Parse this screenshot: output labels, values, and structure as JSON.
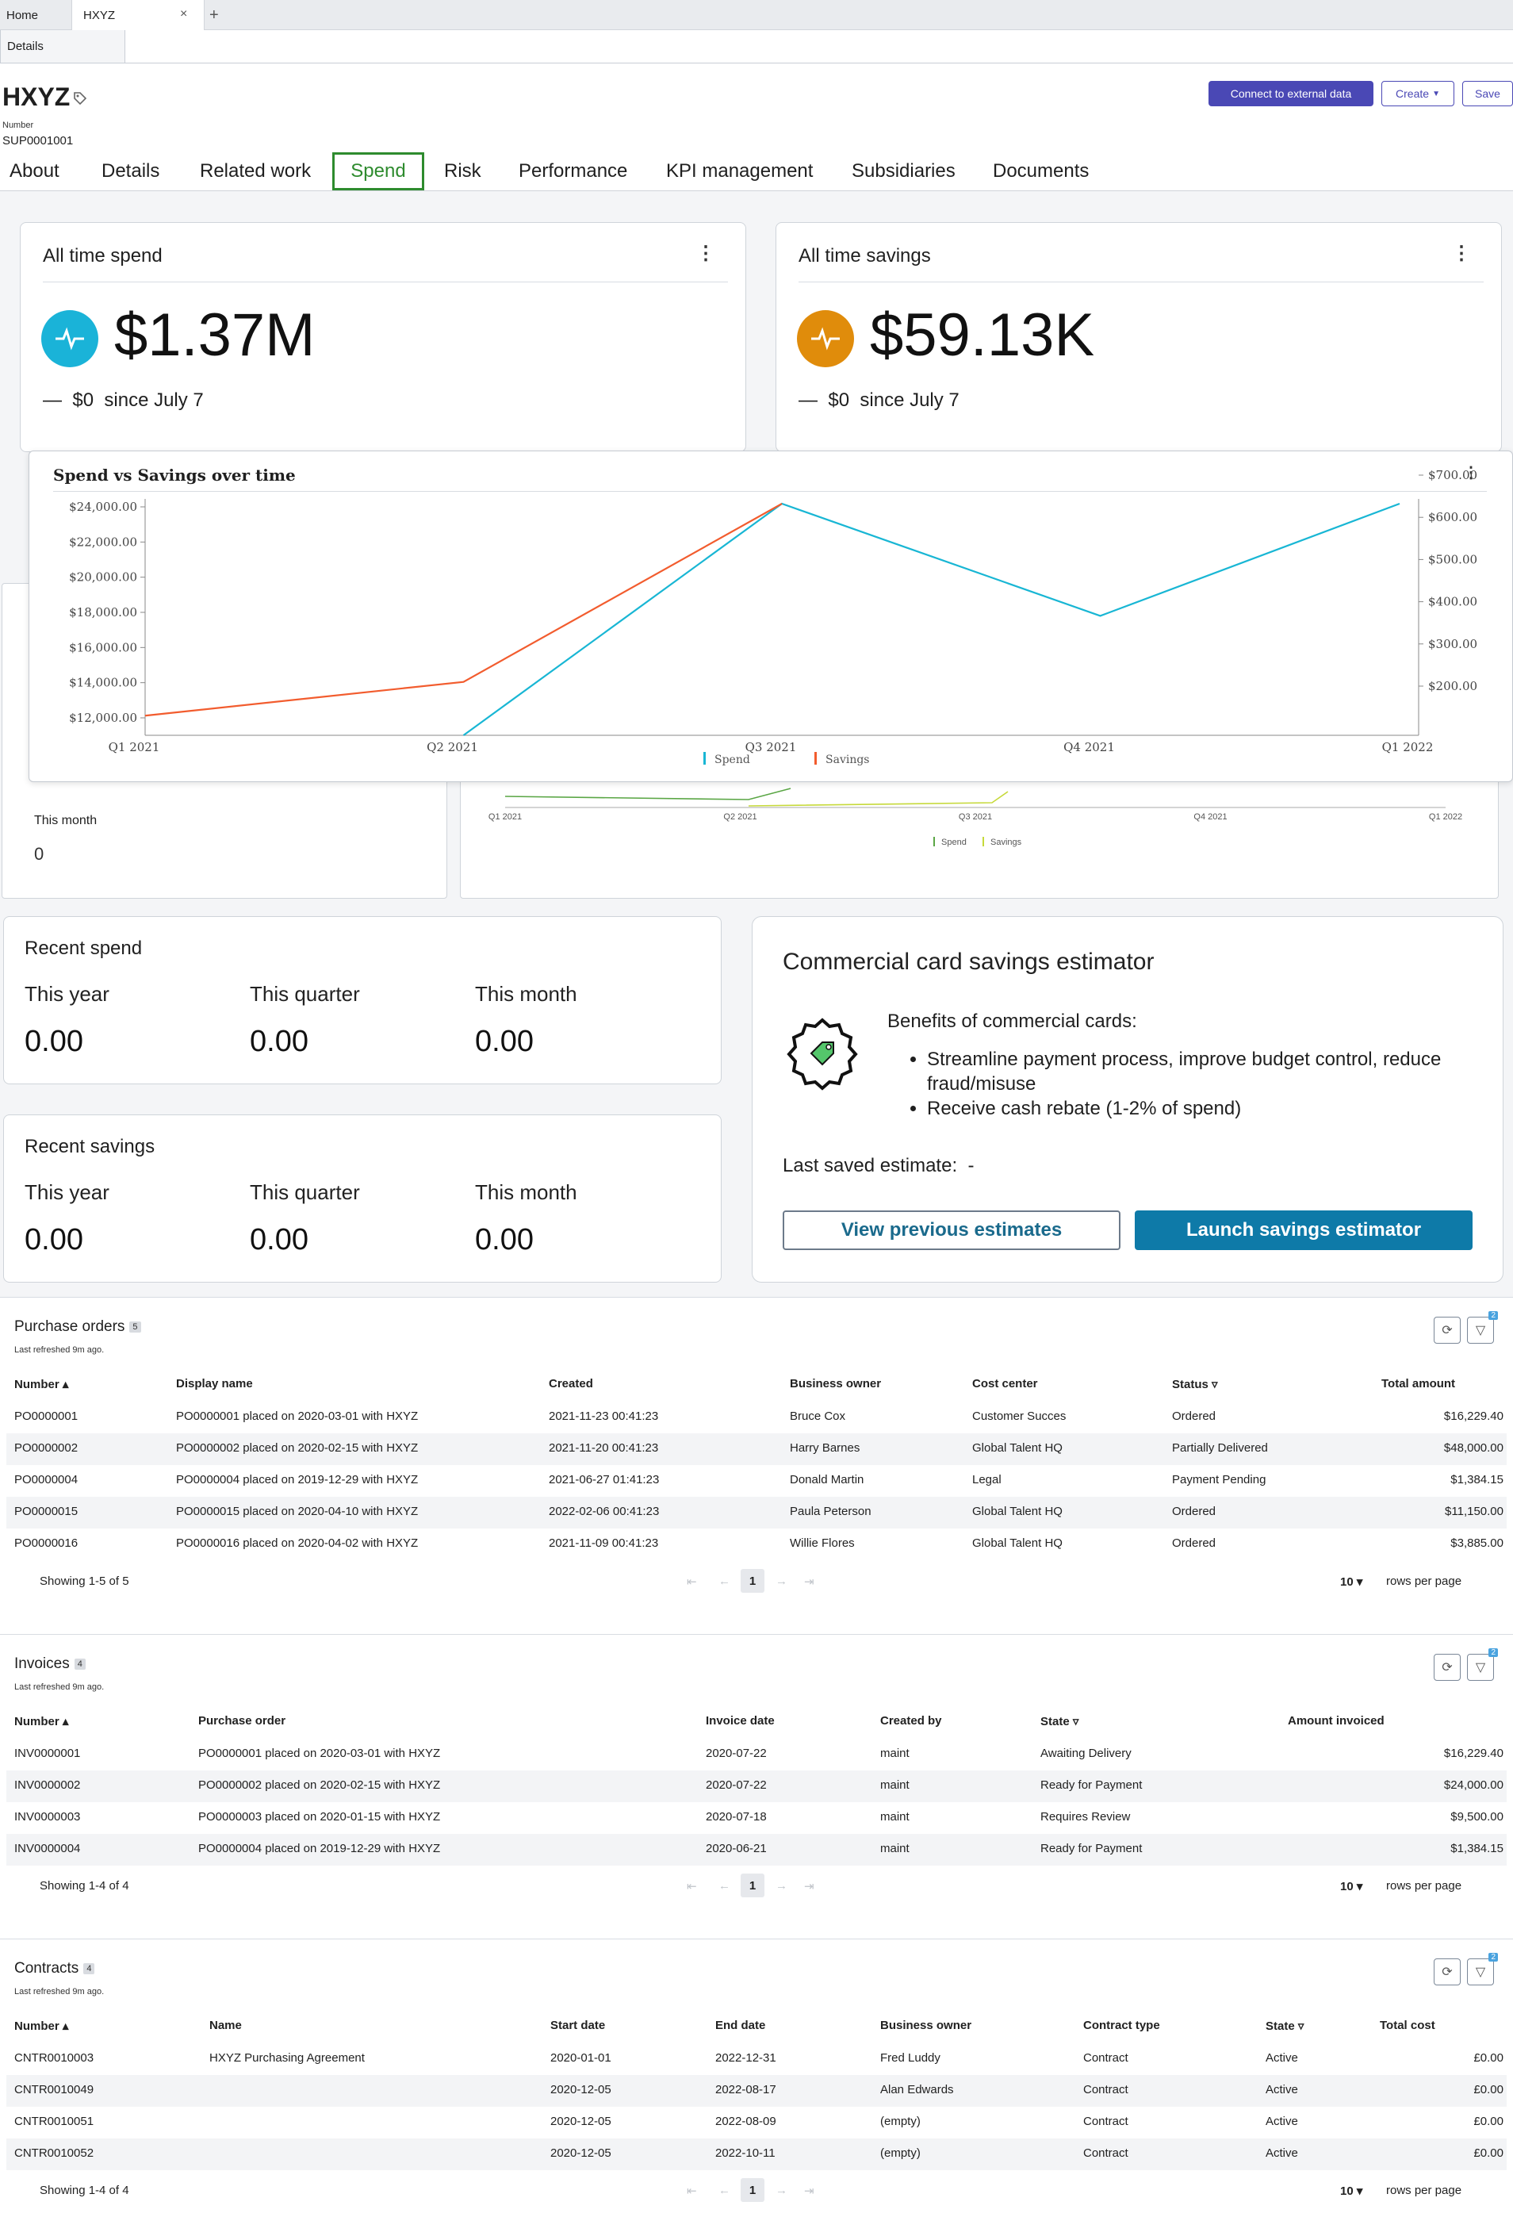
{
  "browser_tabs": {
    "home": "Home",
    "current": "HXYZ",
    "close": "×",
    "new": "+"
  },
  "subtab": "Details",
  "record": {
    "title": "HXYZ",
    "number_label": "Number",
    "number_value": "SUP0001001"
  },
  "header_buttons": {
    "connect": "Connect to external data",
    "create": "Create",
    "save": "Save"
  },
  "nav": [
    "About",
    "Details",
    "Related work",
    "Spend",
    "Risk",
    "Performance",
    "KPI management",
    "Subsidiaries",
    "Documents"
  ],
  "stats": {
    "spend": {
      "title": "All time spend",
      "value": "$1.37M",
      "delta_sym": "—",
      "delta": "$0",
      "since": "since July 7",
      "color": "#1ab3d8"
    },
    "savings": {
      "title": "All time savings",
      "value": "$59.13K",
      "delta_sym": "—",
      "delta": "$0",
      "since": "since July 7",
      "color": "#e08c0b"
    }
  },
  "chart_data": [
    {
      "type": "line",
      "title": "Spend vs Savings over time",
      "categories": [
        "Q1 2021",
        "Q2 2021",
        "Q3 2021",
        "Q4 2021",
        "Q1 2022"
      ],
      "y_left_ticks": [
        "$12,000.00",
        "$14,000.00",
        "$16,000.00",
        "$18,000.00",
        "$20,000.00",
        "$22,000.00",
        "$24,000.00"
      ],
      "y_right_ticks": [
        "$200.00",
        "$300.00",
        "$400.00",
        "$500.00",
        "$600.00",
        "$700.00"
      ],
      "ylim_left": [
        12000,
        24000
      ],
      "ylim_right": [
        200,
        700
      ],
      "series": [
        {
          "name": "Spend",
          "axis": "left",
          "color": "#18b6d4",
          "values": [
            null,
            11000,
            25000,
            17800,
            24900
          ]
        },
        {
          "name": "Savings",
          "axis": "right",
          "color": "#f25c2e",
          "values": [
            130,
            210,
            750,
            null,
            null
          ]
        }
      ],
      "legend": "bottom"
    },
    {
      "type": "line",
      "categories": [
        "Q1 2021",
        "Q2 2021",
        "Q3 2021",
        "Q4 2021",
        "Q1 2022"
      ],
      "series": [
        {
          "name": "Spend",
          "color": "#5aa645"
        },
        {
          "name": "Savings",
          "color": "#c6d93a"
        }
      ],
      "legend": "bottom"
    }
  ],
  "this_month_card": {
    "label": "This month",
    "value": "0"
  },
  "recent_spend": {
    "title": "Recent spend",
    "labels": [
      "This year",
      "This quarter",
      "This month"
    ],
    "values": [
      "0.00",
      "0.00",
      "0.00"
    ]
  },
  "recent_savings": {
    "title": "Recent savings",
    "labels": [
      "This year",
      "This quarter",
      "This month"
    ],
    "values": [
      "0.00",
      "0.00",
      "0.00"
    ]
  },
  "estimator": {
    "title": "Commercial card savings estimator",
    "benefits_heading": "Benefits of commercial cards:",
    "bullets": [
      "Streamline payment process, improve budget control, reduce fraud/misuse",
      "Receive cash rebate (1-2% of spend)"
    ],
    "last_saved_label": "Last saved estimate:",
    "last_saved_value": "-",
    "view_btn": "View previous estimates",
    "launch_btn": "Launch savings estimator"
  },
  "purchase_orders": {
    "title": "Purchase orders",
    "count": "5",
    "refreshed": "Last refreshed 9m ago.",
    "filter_count": "2",
    "headers": [
      "Number ▴",
      "Display name",
      "Created",
      "Business owner",
      "Cost center",
      "Status ▿",
      "Total amount"
    ],
    "rows": [
      [
        "PO0000001",
        "PO0000001 placed on 2020-03-01 with HXYZ",
        "2021-11-23 00:41:23",
        "Bruce Cox",
        "Customer Succes",
        "Ordered",
        "$16,229.40"
      ],
      [
        "PO0000002",
        "PO0000002 placed on 2020-02-15 with HXYZ",
        "2021-11-20 00:41:23",
        "Harry Barnes",
        "Global Talent HQ",
        "Partially Delivered",
        "$48,000.00"
      ],
      [
        "PO0000004",
        "PO0000004 placed on 2019-12-29 with HXYZ",
        "2021-06-27 01:41:23",
        "Donald Martin",
        "Legal",
        "Payment Pending",
        "$1,384.15"
      ],
      [
        "PO0000015",
        "PO0000015 placed on 2020-04-10 with HXYZ",
        "2022-02-06 00:41:23",
        "Paula Peterson",
        "Global Talent HQ",
        "Ordered",
        "$11,150.00"
      ],
      [
        "PO0000016",
        "PO0000016 placed on 2020-04-02 with HXYZ",
        "2021-11-09 00:41:23",
        "Willie Flores",
        "Global Talent HQ",
        "Ordered",
        "$3,885.00"
      ]
    ],
    "showing": "Showing 1-5 of 5",
    "page": "1",
    "rows_per_page": "10",
    "rpp_label": "rows per page"
  },
  "invoices": {
    "title": "Invoices",
    "count": "4",
    "refreshed": "Last refreshed 9m ago.",
    "filter_count": "2",
    "headers": [
      "Number ▴",
      "Purchase order",
      "Invoice date",
      "Created by",
      "State ▿",
      "Amount invoiced"
    ],
    "rows": [
      [
        "INV0000001",
        "PO0000001 placed on 2020-03-01 with HXYZ",
        "2020-07-22",
        "maint",
        "Awaiting Delivery",
        "$16,229.40"
      ],
      [
        "INV0000002",
        "PO0000002 placed on 2020-02-15 with HXYZ",
        "2020-07-22",
        "maint",
        "Ready for Payment",
        "$24,000.00"
      ],
      [
        "INV0000003",
        "PO0000003 placed on 2020-01-15 with HXYZ",
        "2020-07-18",
        "maint",
        "Requires Review",
        "$9,500.00"
      ],
      [
        "INV0000004",
        "PO0000004 placed on 2019-12-29 with HXYZ",
        "2020-06-21",
        "maint",
        "Ready for Payment",
        "$1,384.15"
      ]
    ],
    "showing": "Showing 1-4 of 4",
    "page": "1",
    "rows_per_page": "10",
    "rpp_label": "rows per page"
  },
  "contracts": {
    "title": "Contracts",
    "count": "4",
    "refreshed": "Last refreshed 9m ago.",
    "filter_count": "2",
    "headers": [
      "Number ▴",
      "Name",
      "Start date",
      "End date",
      "Business owner",
      "Contract type",
      "State ▿",
      "Total cost"
    ],
    "rows": [
      [
        "CNTR0010003",
        "HXYZ Purchasing Agreement",
        "2020-01-01",
        "2022-12-31",
        "Fred Luddy",
        "Contract",
        "Active",
        "£0.00"
      ],
      [
        "CNTR0010049",
        "",
        "2020-12-05",
        "2022-08-17",
        "Alan Edwards",
        "Contract",
        "Active",
        "£0.00"
      ],
      [
        "CNTR0010051",
        "",
        "2020-12-05",
        "2022-08-09",
        "(empty)",
        "Contract",
        "Active",
        "£0.00"
      ],
      [
        "CNTR0010052",
        "",
        "2020-12-05",
        "2022-10-11",
        "(empty)",
        "Contract",
        "Active",
        "£0.00"
      ]
    ],
    "showing": "Showing 1-4 of 4",
    "page": "1",
    "rows_per_page": "10",
    "rpp_label": "rows per page"
  }
}
